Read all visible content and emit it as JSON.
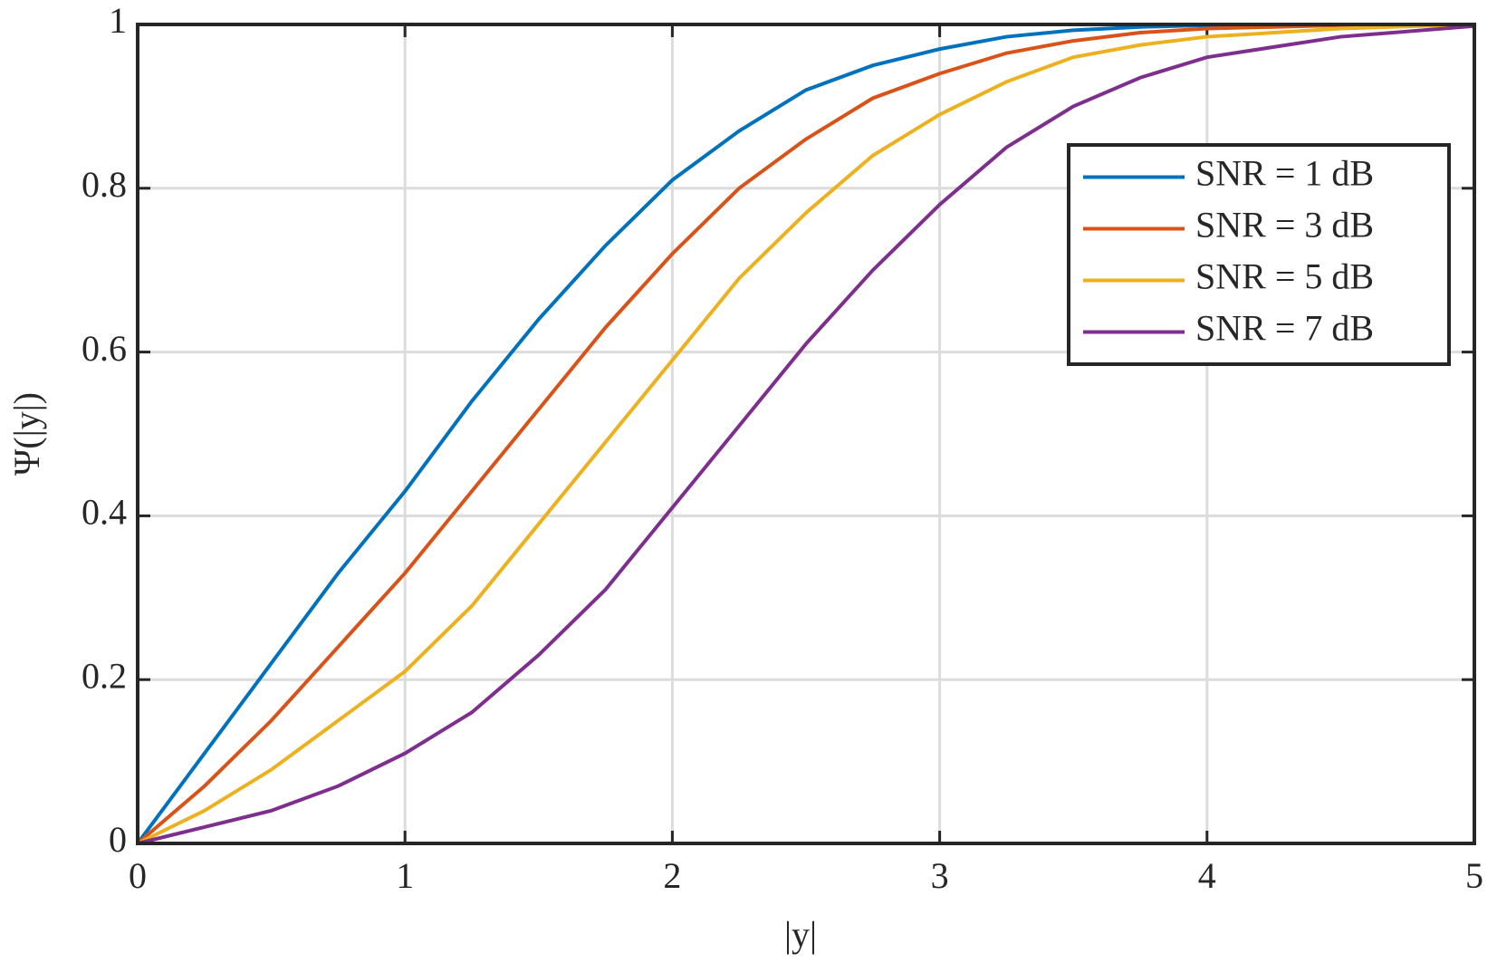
{
  "chart_data": {
    "type": "line",
    "xlabel": "|y|",
    "ylabel": "Ψ(|y|)",
    "x": [
      0,
      0.25,
      0.5,
      0.75,
      1,
      1.25,
      1.5,
      1.75,
      2,
      2.25,
      2.5,
      2.75,
      3,
      3.25,
      3.5,
      3.75,
      4,
      4.5,
      5
    ],
    "series": [
      {
        "name": "SNR = 1 dB",
        "color": "#0072bd",
        "values": [
          0,
          0.11,
          0.22,
          0.33,
          0.43,
          0.54,
          0.64,
          0.73,
          0.81,
          0.87,
          0.92,
          0.95,
          0.97,
          0.985,
          0.993,
          0.997,
          0.999,
          1,
          1
        ]
      },
      {
        "name": "SNR = 3 dB",
        "color": "#d95319",
        "values": [
          0,
          0.07,
          0.15,
          0.24,
          0.33,
          0.43,
          0.53,
          0.63,
          0.72,
          0.8,
          0.86,
          0.91,
          0.94,
          0.965,
          0.98,
          0.99,
          0.995,
          0.999,
          1
        ]
      },
      {
        "name": "SNR = 5 dB",
        "color": "#edb120",
        "values": [
          0,
          0.04,
          0.09,
          0.15,
          0.21,
          0.29,
          0.39,
          0.49,
          0.59,
          0.69,
          0.77,
          0.84,
          0.89,
          0.93,
          0.96,
          0.975,
          0.985,
          0.995,
          1
        ]
      },
      {
        "name": "SNR = 7 dB",
        "color": "#7e2f8e",
        "values": [
          0,
          0.02,
          0.04,
          0.07,
          0.11,
          0.16,
          0.23,
          0.31,
          0.41,
          0.51,
          0.61,
          0.7,
          0.78,
          0.85,
          0.9,
          0.935,
          0.96,
          0.985,
          0.998
        ]
      }
    ],
    "xlim": [
      0,
      5
    ],
    "xticks": [
      0,
      1,
      2,
      3,
      4,
      5
    ],
    "ylim": [
      0,
      1
    ],
    "yticks": [
      0,
      0.2,
      0.4,
      0.6,
      0.8,
      1
    ],
    "grid": true,
    "legend": "northeast"
  }
}
